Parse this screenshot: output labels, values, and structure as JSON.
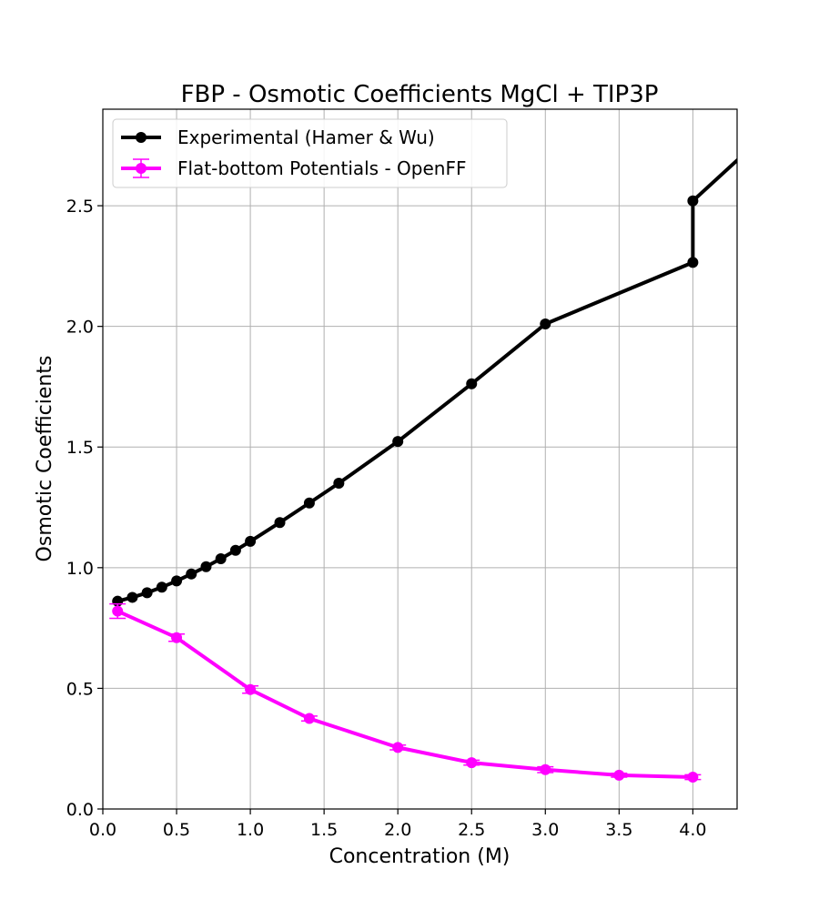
{
  "chart_data": {
    "type": "line",
    "title": "FBP - Osmotic Coefficients MgCl + TIP3P",
    "xlabel": "Concentration (M)",
    "ylabel": "Osmotic Coefficients",
    "xlim": [
      0.0,
      4.3
    ],
    "ylim": [
      0.0,
      2.9
    ],
    "xticks": [
      0.0,
      0.5,
      1.0,
      1.5,
      2.0,
      2.5,
      3.0,
      3.5,
      4.0
    ],
    "xtick_labels": [
      "0.0",
      "0.5",
      "1.0",
      "1.5",
      "2.0",
      "2.5",
      "3.0",
      "3.5",
      "4.0"
    ],
    "yticks": [
      0.0,
      0.5,
      1.0,
      1.5,
      2.0,
      2.5
    ],
    "ytick_labels": [
      "0.0",
      "0.5",
      "1.0",
      "1.5",
      "2.0",
      "2.5"
    ],
    "grid": true,
    "legend_position": "top-left",
    "series": [
      {
        "name": "Experimental (Hamer & Wu)",
        "color": "#000000",
        "marker": "circle",
        "x": [
          0.1,
          0.2,
          0.3,
          0.4,
          0.5,
          0.6,
          0.7,
          0.8,
          0.9,
          1.0,
          1.2,
          1.4,
          1.6,
          2.0,
          2.5,
          3.0,
          4.0,
          4.0,
          4.5
        ],
        "y": [
          0.861,
          0.877,
          0.896,
          0.919,
          0.945,
          0.974,
          1.004,
          1.037,
          1.072,
          1.109,
          1.187,
          1.268,
          1.35,
          1.523,
          1.762,
          2.01,
          2.265,
          2.52,
          2.8
        ],
        "marker_count": 18
      },
      {
        "name": "Flat-bottom Potentials - OpenFF",
        "color": "#ff00ff",
        "marker": "circle",
        "x": [
          0.1,
          0.5,
          1.0,
          1.4,
          2.0,
          2.5,
          3.0,
          3.5,
          4.0
        ],
        "y": [
          0.82,
          0.71,
          0.495,
          0.375,
          0.255,
          0.192,
          0.163,
          0.14,
          0.132
        ],
        "yerr": [
          0.03,
          0.015,
          0.015,
          0.01,
          0.01,
          0.01,
          0.012,
          0.008,
          0.01
        ]
      }
    ]
  }
}
